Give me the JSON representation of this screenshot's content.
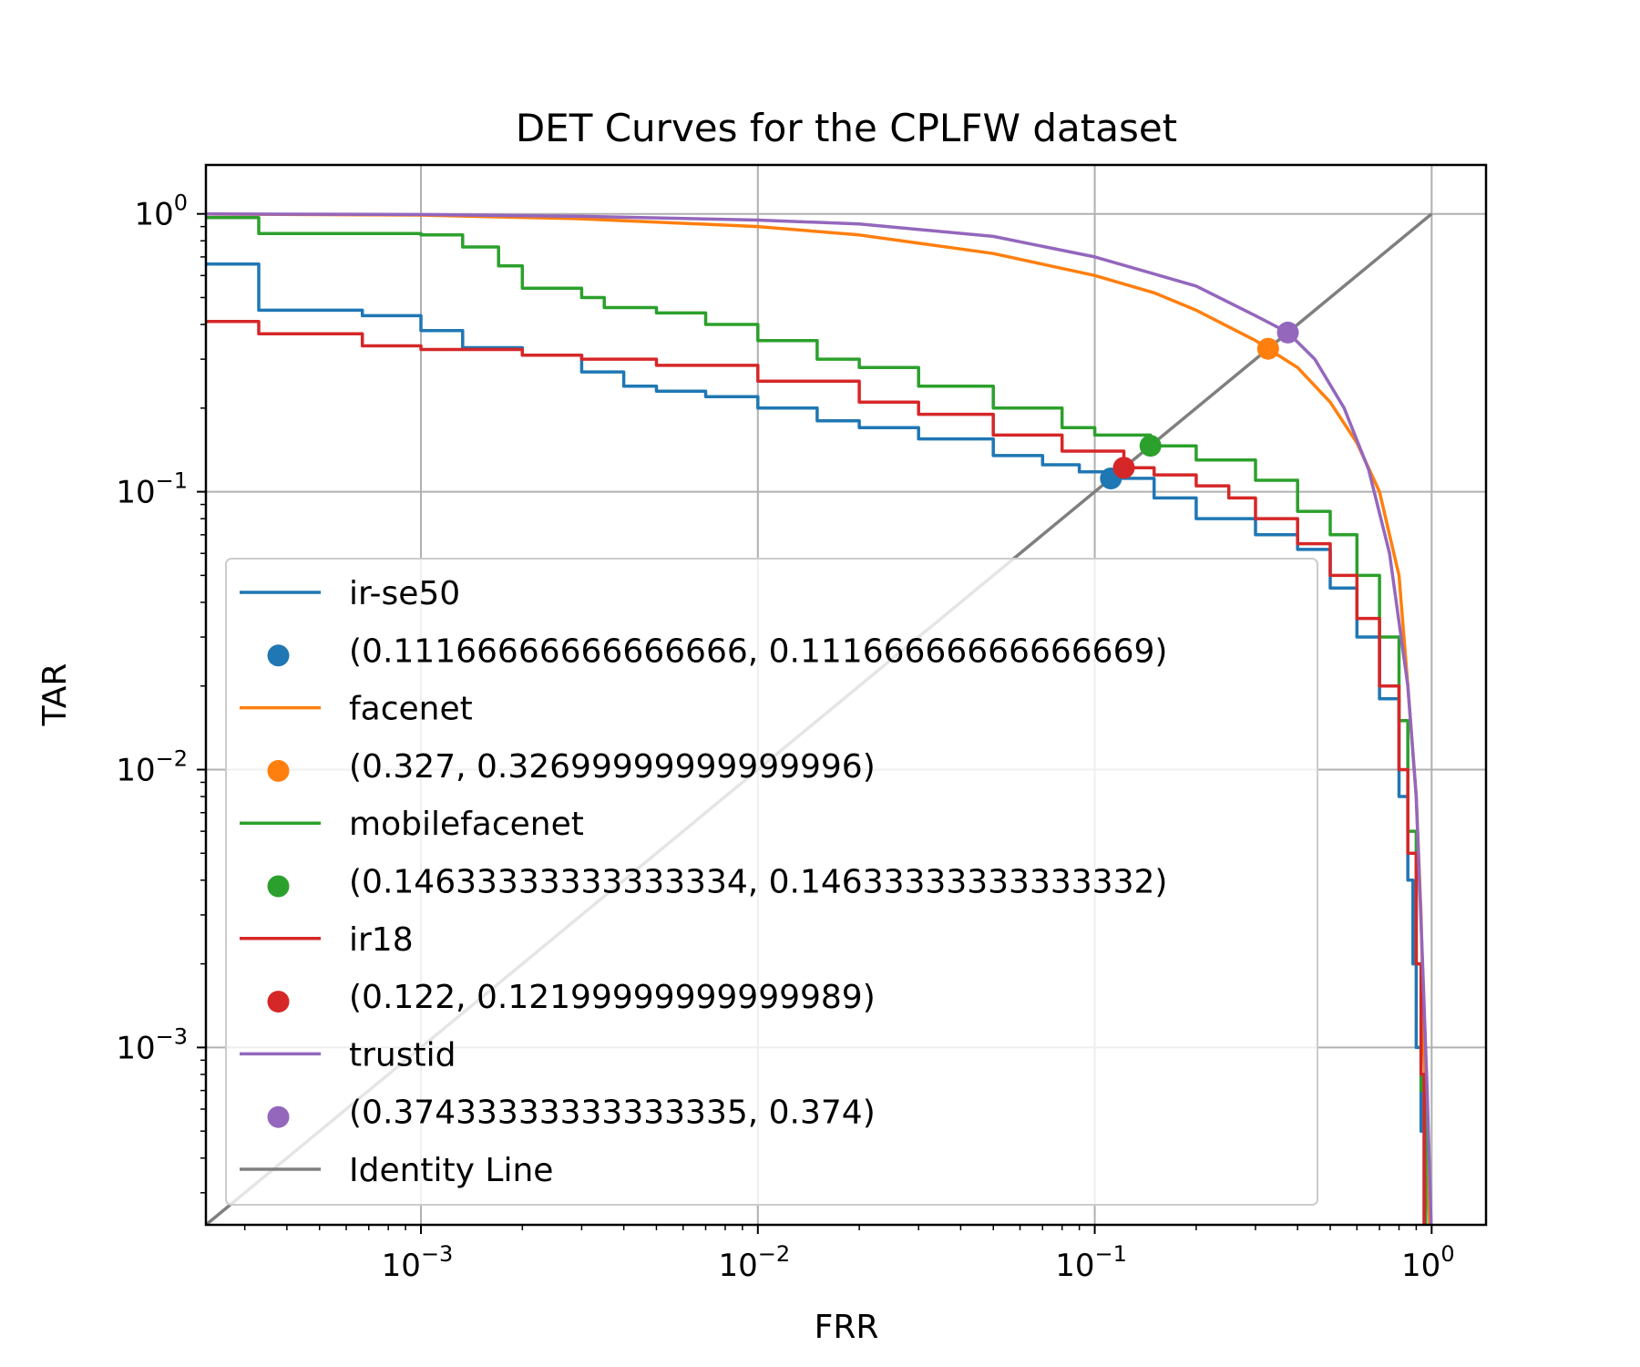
{
  "chart_data": {
    "type": "line",
    "title": "DET Curves for the CPLFW dataset",
    "xlabel": "FRR",
    "ylabel": "TAR",
    "xscale": "log",
    "yscale": "log",
    "xlim": [
      0.00023,
      1.45
    ],
    "ylim": [
      0.00023,
      1.5
    ],
    "grid": true,
    "legend_position": "lower-left",
    "x_ticks": [
      {
        "base": "10",
        "exp": "−3",
        "value": 0.001
      },
      {
        "base": "10",
        "exp": "−2",
        "value": 0.01
      },
      {
        "base": "10",
        "exp": "−1",
        "value": 0.1
      },
      {
        "base": "10",
        "exp": "0",
        "value": 1
      }
    ],
    "y_ticks": [
      {
        "base": "10",
        "exp": "0",
        "value": 1
      },
      {
        "base": "10",
        "exp": "−1",
        "value": 0.1
      },
      {
        "base": "10",
        "exp": "−2",
        "value": 0.01
      },
      {
        "base": "10",
        "exp": "−3",
        "value": 0.001
      }
    ],
    "series": [
      {
        "name": "ir-se50",
        "color": "#1f77b4",
        "step": true,
        "x": [
          0.0002,
          0.00033,
          0.00067,
          0.001,
          0.00133,
          0.002,
          0.003,
          0.004,
          0.005,
          0.007,
          0.01,
          0.015,
          0.02,
          0.03,
          0.05,
          0.07,
          0.09,
          0.1117,
          0.15,
          0.2,
          0.3,
          0.4,
          0.5,
          0.6,
          0.7,
          0.8,
          0.85,
          0.88,
          0.9,
          0.93,
          0.95
        ],
        "y": [
          0.66,
          0.45,
          0.43,
          0.38,
          0.33,
          0.31,
          0.27,
          0.24,
          0.23,
          0.22,
          0.2,
          0.18,
          0.17,
          0.155,
          0.135,
          0.125,
          0.118,
          0.1117,
          0.095,
          0.08,
          0.07,
          0.062,
          0.045,
          0.03,
          0.018,
          0.008,
          0.004,
          0.002,
          0.001,
          0.0005,
          0.0002
        ]
      },
      {
        "name": "facenet",
        "color": "#ff7f0e",
        "step": false,
        "x": [
          0.0002,
          0.001,
          0.003,
          0.01,
          0.02,
          0.05,
          0.1,
          0.15,
          0.2,
          0.3,
          0.327,
          0.4,
          0.5,
          0.6,
          0.7,
          0.8,
          0.85,
          0.9,
          0.93,
          0.95,
          0.97,
          0.99
        ],
        "y": [
          1.0,
          0.99,
          0.96,
          0.9,
          0.84,
          0.72,
          0.6,
          0.52,
          0.45,
          0.35,
          0.327,
          0.28,
          0.21,
          0.15,
          0.1,
          0.05,
          0.02,
          0.008,
          0.003,
          0.001,
          0.0004,
          0.0002
        ]
      },
      {
        "name": "mobilefacenet",
        "color": "#2ca02c",
        "step": true,
        "x": [
          0.0002,
          0.00033,
          0.001,
          0.00133,
          0.0017,
          0.002,
          0.003,
          0.0035,
          0.005,
          0.007,
          0.01,
          0.015,
          0.02,
          0.03,
          0.05,
          0.08,
          0.1,
          0.1463,
          0.2,
          0.3,
          0.4,
          0.5,
          0.6,
          0.7,
          0.8,
          0.85,
          0.9,
          0.93,
          0.96
        ],
        "y": [
          0.97,
          0.85,
          0.84,
          0.76,
          0.65,
          0.54,
          0.5,
          0.46,
          0.44,
          0.4,
          0.35,
          0.3,
          0.28,
          0.24,
          0.2,
          0.17,
          0.16,
          0.1463,
          0.13,
          0.11,
          0.085,
          0.07,
          0.05,
          0.03,
          0.015,
          0.006,
          0.002,
          0.0007,
          0.0002
        ]
      },
      {
        "name": "ir18",
        "color": "#d62728",
        "step": true,
        "x": [
          0.0002,
          0.00033,
          0.00067,
          0.001,
          0.002,
          0.003,
          0.005,
          0.01,
          0.02,
          0.03,
          0.05,
          0.08,
          0.122,
          0.15,
          0.2,
          0.25,
          0.3,
          0.4,
          0.5,
          0.6,
          0.7,
          0.8,
          0.85,
          0.9,
          0.93,
          0.95
        ],
        "y": [
          0.41,
          0.37,
          0.335,
          0.325,
          0.31,
          0.3,
          0.285,
          0.25,
          0.21,
          0.19,
          0.16,
          0.14,
          0.122,
          0.115,
          0.105,
          0.095,
          0.08,
          0.065,
          0.05,
          0.035,
          0.02,
          0.01,
          0.005,
          0.002,
          0.0008,
          0.0002
        ]
      },
      {
        "name": "trustid",
        "color": "#9467bd",
        "step": false,
        "x": [
          0.0002,
          0.001,
          0.003,
          0.01,
          0.02,
          0.05,
          0.1,
          0.2,
          0.3,
          0.3743,
          0.45,
          0.55,
          0.65,
          0.75,
          0.85,
          0.9,
          0.94,
          0.97,
          0.99,
          1.0
        ],
        "y": [
          1.0,
          0.995,
          0.98,
          0.95,
          0.92,
          0.83,
          0.7,
          0.55,
          0.43,
          0.374,
          0.3,
          0.2,
          0.12,
          0.06,
          0.02,
          0.008,
          0.002,
          0.0007,
          0.0003,
          0.0002
        ]
      },
      {
        "name": "Identity Line",
        "color": "#7f7f7f",
        "step": false,
        "x": [
          0.0002,
          1.0
        ],
        "y": [
          0.0002,
          1.0
        ]
      }
    ],
    "eer_points": [
      {
        "label": "(0.11166666666666666, 0.11166666666666669)",
        "x": 0.11166666666666666,
        "y": 0.11166666666666669,
        "color": "#1f77b4"
      },
      {
        "label": "(0.327, 0.32699999999999996)",
        "x": 0.327,
        "y": 0.32699999999999996,
        "color": "#ff7f0e"
      },
      {
        "label": "(0.14633333333333334, 0.14633333333333332)",
        "x": 0.14633333333333334,
        "y": 0.14633333333333332,
        "color": "#2ca02c"
      },
      {
        "label": "(0.122, 0.12199999999999989)",
        "x": 0.122,
        "y": 0.12199999999999989,
        "color": "#d62728"
      },
      {
        "label": "(0.37433333333333335, 0.374)",
        "x": 0.37433333333333335,
        "y": 0.374,
        "color": "#9467bd"
      }
    ],
    "legend": [
      {
        "kind": "line",
        "series": 0
      },
      {
        "kind": "point",
        "point": 0
      },
      {
        "kind": "line",
        "series": 1
      },
      {
        "kind": "point",
        "point": 1
      },
      {
        "kind": "line",
        "series": 2
      },
      {
        "kind": "point",
        "point": 2
      },
      {
        "kind": "line",
        "series": 3
      },
      {
        "kind": "point",
        "point": 3
      },
      {
        "kind": "line",
        "series": 4
      },
      {
        "kind": "point",
        "point": 4
      },
      {
        "kind": "line",
        "series": 5
      }
    ]
  }
}
